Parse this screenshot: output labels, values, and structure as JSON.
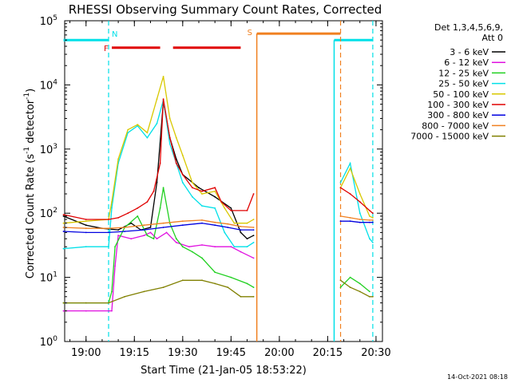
{
  "chart_data": {
    "type": "line",
    "title": "RHESSI Observing Summary Count Rates, Corrected",
    "xlabel": "Start Time (21-Jan-05 18:53:22)",
    "ylabel_main": "Corrected Count Rate (s",
    "ylabel_sup1": "-1",
    "ylabel_mid": " detector",
    "ylabel_sup2": "-1",
    "ylabel_end": ")",
    "y_scale": "log",
    "ylim": [
      1,
      100000
    ],
    "xlim": [
      "18:53:22",
      "20:32:00"
    ],
    "x_ticks": [
      "19:00",
      "19:15",
      "19:30",
      "19:45",
      "20:00",
      "20:15",
      "20:30"
    ],
    "y_ticks": [
      {
        "base": "10",
        "exp": "0",
        "value": 1
      },
      {
        "base": "10",
        "exp": "1",
        "value": 10
      },
      {
        "base": "10",
        "exp": "2",
        "value": 100
      },
      {
        "base": "10",
        "exp": "3",
        "value": 1000
      },
      {
        "base": "10",
        "exp": "4",
        "value": 10000
      },
      {
        "base": "10",
        "exp": "5",
        "value": 100000
      }
    ],
    "legend_header": [
      "Det 1,3,4,5,6,9,",
      "Att 0"
    ],
    "legend_placement": "right",
    "timestamp": "14-Oct-2021 08:18",
    "series": [
      {
        "name": "3 - 6 keV",
        "color": "#000000",
        "points": [
          [
            "18:53",
            90
          ],
          [
            "19:00",
            65
          ],
          [
            "19:05",
            58
          ],
          [
            "19:10",
            55
          ],
          [
            "19:14",
            70
          ],
          [
            "19:17",
            55
          ],
          [
            "19:20",
            60
          ],
          [
            "19:22",
            300
          ],
          [
            "19:24",
            5500
          ],
          [
            "19:26",
            1500
          ],
          [
            "19:28",
            700
          ],
          [
            "19:30",
            400
          ],
          [
            "19:35",
            250
          ],
          [
            "19:40",
            180
          ],
          [
            "19:45",
            120
          ],
          [
            "19:48",
            50
          ],
          [
            "19:50",
            40
          ],
          [
            "19:52",
            45
          ]
        ]
      },
      {
        "name": "6 - 12 keV",
        "color": "#e010e0",
        "points": [
          [
            "18:53",
            3
          ],
          [
            "19:00",
            3
          ],
          [
            "19:07",
            3
          ],
          [
            "19:08",
            3
          ],
          [
            "19:09",
            15
          ],
          [
            "19:10",
            45
          ],
          [
            "19:14",
            40
          ],
          [
            "19:18",
            45
          ],
          [
            "19:20",
            50
          ],
          [
            "19:22",
            40
          ],
          [
            "19:25",
            50
          ],
          [
            "19:28",
            35
          ],
          [
            "19:32",
            30
          ],
          [
            "19:36",
            32
          ],
          [
            "19:40",
            30
          ],
          [
            "19:45",
            30
          ],
          [
            "19:48",
            25
          ],
          [
            "19:52",
            20
          ]
        ]
      },
      {
        "name": "12 - 25 keV",
        "color": "#20d020",
        "points": [
          [
            "18:53",
            4
          ],
          [
            "19:00",
            4
          ],
          [
            "19:07",
            4
          ],
          [
            "19:08",
            6
          ],
          [
            "19:09",
            30
          ],
          [
            "19:12",
            60
          ],
          [
            "19:16",
            90
          ],
          [
            "19:19",
            45
          ],
          [
            "19:21",
            40
          ],
          [
            "19:23",
            120
          ],
          [
            "19:24",
            250
          ],
          [
            "19:26",
            70
          ],
          [
            "19:28",
            40
          ],
          [
            "19:30",
            30
          ],
          [
            "19:33",
            25
          ],
          [
            "19:36",
            20
          ],
          [
            "19:40",
            12
          ],
          [
            "19:45",
            10
          ],
          [
            "19:50",
            8
          ],
          [
            "19:52",
            7
          ],
          [
            "20:19",
            7
          ],
          [
            "20:22",
            10
          ],
          [
            "20:25",
            8
          ],
          [
            "20:28",
            6
          ]
        ]
      },
      {
        "name": "25 - 50 keV",
        "color": "#00e0e8",
        "points": [
          [
            "18:53",
            28
          ],
          [
            "19:00",
            30
          ],
          [
            "19:07",
            30
          ],
          [
            "19:08",
            120
          ],
          [
            "19:10",
            600
          ],
          [
            "19:13",
            1800
          ],
          [
            "19:16",
            2300
          ],
          [
            "19:19",
            1500
          ],
          [
            "19:22",
            2500
          ],
          [
            "19:24",
            5800
          ],
          [
            "19:26",
            1200
          ],
          [
            "19:28",
            600
          ],
          [
            "19:30",
            300
          ],
          [
            "19:33",
            180
          ],
          [
            "19:36",
            130
          ],
          [
            "19:40",
            120
          ],
          [
            "19:43",
            50
          ],
          [
            "19:46",
            30
          ],
          [
            "19:50",
            30
          ],
          [
            "19:52",
            35
          ],
          [
            "20:19",
            300
          ],
          [
            "20:22",
            600
          ],
          [
            "20:25",
            100
          ],
          [
            "20:28",
            40
          ],
          [
            "20:29",
            35
          ]
        ]
      },
      {
        "name": "50 - 100 keV",
        "color": "#d8c800",
        "points": [
          [
            "18:53",
            70
          ],
          [
            "19:00",
            75
          ],
          [
            "19:07",
            80
          ],
          [
            "19:08",
            150
          ],
          [
            "19:10",
            700
          ],
          [
            "19:13",
            2000
          ],
          [
            "19:16",
            2400
          ],
          [
            "19:19",
            1800
          ],
          [
            "19:22",
            6000
          ],
          [
            "19:24",
            13500
          ],
          [
            "19:26",
            3000
          ],
          [
            "19:28",
            1500
          ],
          [
            "19:30",
            800
          ],
          [
            "19:33",
            300
          ],
          [
            "19:36",
            200
          ],
          [
            "19:40",
            220
          ],
          [
            "19:43",
            120
          ],
          [
            "19:46",
            70
          ],
          [
            "19:50",
            70
          ],
          [
            "19:52",
            80
          ],
          [
            "20:19",
            250
          ],
          [
            "20:22",
            500
          ],
          [
            "20:25",
            200
          ],
          [
            "20:28",
            90
          ],
          [
            "20:29",
            85
          ]
        ]
      },
      {
        "name": "100 - 300 keV",
        "color": "#e00000",
        "points": [
          [
            "18:53",
            95
          ],
          [
            "19:00",
            80
          ],
          [
            "19:07",
            80
          ],
          [
            "19:10",
            85
          ],
          [
            "19:13",
            100
          ],
          [
            "19:16",
            120
          ],
          [
            "19:19",
            150
          ],
          [
            "19:21",
            220
          ],
          [
            "19:23",
            600
          ],
          [
            "19:24",
            6000
          ],
          [
            "19:26",
            1500
          ],
          [
            "19:28",
            600
          ],
          [
            "19:30",
            400
          ],
          [
            "19:33",
            250
          ],
          [
            "19:36",
            220
          ],
          [
            "19:40",
            250
          ],
          [
            "19:42",
            150
          ],
          [
            "19:45",
            110
          ],
          [
            "19:50",
            110
          ],
          [
            "19:52",
            200
          ],
          [
            "20:19",
            250
          ],
          [
            "20:22",
            200
          ],
          [
            "20:25",
            150
          ],
          [
            "20:28",
            110
          ],
          [
            "20:29",
            100
          ]
        ]
      },
      {
        "name": "300 - 800 keV",
        "color": "#0000e0",
        "points": [
          [
            "18:53",
            52
          ],
          [
            "19:00",
            50
          ],
          [
            "19:07",
            50
          ],
          [
            "19:12",
            52
          ],
          [
            "19:18",
            55
          ],
          [
            "19:24",
            60
          ],
          [
            "19:30",
            65
          ],
          [
            "19:36",
            70
          ],
          [
            "19:40",
            65
          ],
          [
            "19:44",
            60
          ],
          [
            "19:48",
            55
          ],
          [
            "19:52",
            55
          ],
          [
            "20:19",
            75
          ],
          [
            "20:22",
            75
          ],
          [
            "20:25",
            72
          ],
          [
            "20:28",
            72
          ],
          [
            "20:29",
            72
          ]
        ]
      },
      {
        "name": "800 - 7000 keV",
        "color": "#f08020",
        "points": [
          [
            "18:53",
            60
          ],
          [
            "19:00",
            58
          ],
          [
            "19:07",
            58
          ],
          [
            "19:12",
            60
          ],
          [
            "19:18",
            65
          ],
          [
            "19:24",
            70
          ],
          [
            "19:30",
            75
          ],
          [
            "19:36",
            78
          ],
          [
            "19:40",
            72
          ],
          [
            "19:44",
            68
          ],
          [
            "19:48",
            62
          ],
          [
            "19:52",
            60
          ],
          [
            "20:19",
            90
          ],
          [
            "20:22",
            85
          ],
          [
            "20:25",
            80
          ],
          [
            "20:28",
            78
          ],
          [
            "20:29",
            78
          ]
        ]
      },
      {
        "name": "7000 - 15000 keV",
        "color": "#808000",
        "points": [
          [
            "18:53",
            4
          ],
          [
            "19:00",
            4
          ],
          [
            "19:07",
            4
          ],
          [
            "19:12",
            5
          ],
          [
            "19:18",
            6
          ],
          [
            "19:24",
            7
          ],
          [
            "19:30",
            9
          ],
          [
            "19:36",
            9
          ],
          [
            "19:40",
            8
          ],
          [
            "19:44",
            7
          ],
          [
            "19:48",
            5
          ],
          [
            "19:52",
            5
          ],
          [
            "20:19",
            9
          ],
          [
            "20:22",
            7
          ],
          [
            "20:25",
            6
          ],
          [
            "20:28",
            5
          ],
          [
            "20:29",
            5
          ]
        ]
      }
    ],
    "annotations": [
      {
        "text": "N",
        "color": "#00e0e8",
        "kind": "night",
        "bars": [
          [
            "18:53",
            "19:07"
          ],
          [
            "20:17",
            "20:29"
          ]
        ],
        "level": 50000,
        "dashes": [
          "19:07",
          "20:29"
        ],
        "solids": [
          "20:17"
        ]
      },
      {
        "text": "F",
        "color": "#e00000",
        "kind": "flare",
        "bars": [
          [
            "19:08",
            "19:23"
          ],
          [
            "19:27",
            "19:48"
          ]
        ],
        "level": 38000
      },
      {
        "text": "S",
        "color": "#f08020",
        "kind": "saa",
        "bars": [
          [
            "19:53",
            "20:19"
          ]
        ],
        "level": 63000,
        "dashes": [
          "20:19"
        ],
        "solids": [
          "19:53"
        ]
      }
    ]
  }
}
